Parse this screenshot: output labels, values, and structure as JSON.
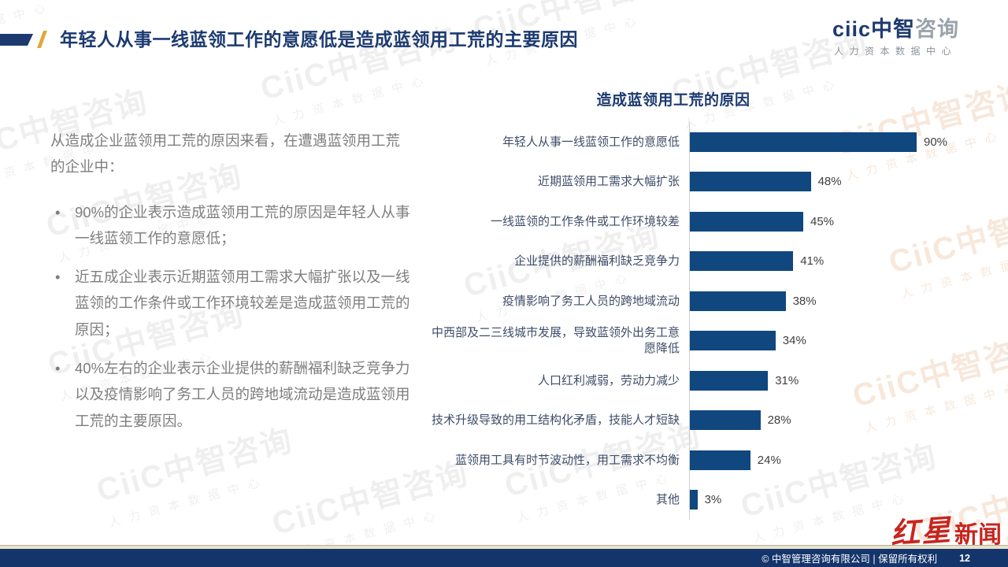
{
  "slide": {
    "title": "年轻人从事一线蓝领工作的意愿低是造成蓝领用工荒的主要原因"
  },
  "brand": {
    "logo_latin": "ciic",
    "logo_cn_primary": "中智",
    "logo_cn_secondary": "咨询",
    "subtitle": "人力资本数据中心"
  },
  "left_panel": {
    "intro": "从造成企业蓝领用工荒的原因来看，在遭遇蓝领用工荒的企业中：",
    "bullets": [
      "90%的企业表示造成蓝领用工荒的原因是年轻人从事一线蓝领工作的意愿低；",
      "近五成企业表示近期蓝领用工需求大幅扩张以及一线蓝领的工作条件或工作环境较差是造成蓝领用工荒的原因；",
      "40%左右的企业表示企业提供的薪酬福利缺乏竞争力以及疫情影响了务工人员的跨地域流动是造成蓝领用工荒的主要原因。"
    ]
  },
  "chart_data": {
    "type": "bar",
    "orientation": "horizontal",
    "title": "造成蓝领用工荒的原因",
    "categories": [
      "年轻人从事一线蓝领工作的意愿低",
      "近期蓝领用工需求大幅扩张",
      "一线蓝领的工作条件或工作环境较差",
      "企业提供的薪酬福利缺乏竞争力",
      "疫情影响了务工人员的跨地域流动",
      "中西部及二三线城市发展，导致蓝领外出务工意愿降低",
      "人口红利减弱，劳动力减少",
      "技术升级导致的用工结构化矛盾，技能人才短缺",
      "蓝领用工具有时节波动性，用工需求不均衡",
      "其他"
    ],
    "values": [
      90,
      48,
      45,
      41,
      38,
      34,
      31,
      28,
      24,
      3
    ],
    "unit": "%",
    "xlim": [
      0,
      100
    ],
    "grid": false,
    "legend": false,
    "value_labels": true,
    "bar_color": "#10477f"
  },
  "watermark": {
    "logo": "CiiC中智咨询",
    "sub": "人力资本数据中心"
  },
  "news_badge": {
    "part1": "红星",
    "part2": "新闻"
  },
  "footer": {
    "copyright": "© 中智管理咨询有限公司 | 保留所有权利",
    "page": "12"
  },
  "colors": {
    "navy": "#1c3a70",
    "bar_navy": "#10477f",
    "gold": "#e2a83b",
    "footer_navy": "#14356b",
    "badge_red": "#c8251f",
    "body_gray": "#7e7e7e"
  }
}
